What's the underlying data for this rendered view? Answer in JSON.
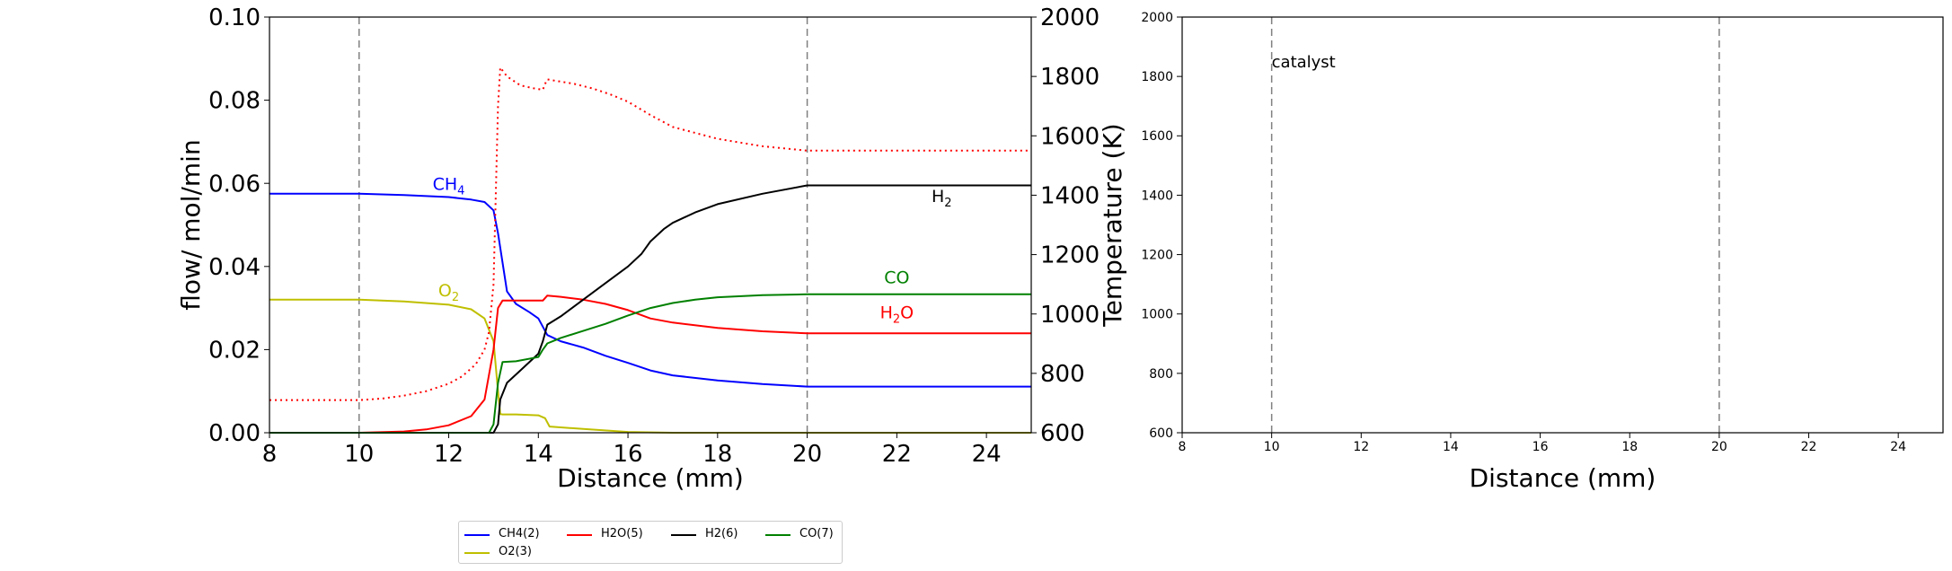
{
  "chart_data": [
    {
      "type": "line",
      "xlabel": "Distance (mm)",
      "ylabel": "flow/ mol/min",
      "ylabel_right": "Temperature (K)",
      "xlim": [
        8,
        25
      ],
      "ylim": [
        0,
        0.1
      ],
      "ylim_right": [
        600,
        2000
      ],
      "x_ticks": [
        "8",
        "10",
        "12",
        "14",
        "16",
        "18",
        "20",
        "22",
        "24"
      ],
      "y_ticks": [
        "0.00",
        "0.02",
        "0.04",
        "0.06",
        "0.08",
        "0.10"
      ],
      "y_right_ticks": [
        "600",
        "800",
        "1000",
        "1200",
        "1400",
        "1600",
        "1800",
        "2000"
      ],
      "vlines": [
        10,
        20
      ],
      "series": [
        {
          "name": "CH4(2)",
          "color": "#0000ff",
          "style": "solid",
          "x": [
            8,
            10,
            11,
            12,
            12.5,
            12.8,
            13.0,
            13.1,
            13.2,
            13.3,
            13.5,
            13.8,
            14.0,
            14.2,
            14.5,
            15,
            15.5,
            16,
            16.5,
            17,
            18,
            19,
            20,
            25
          ],
          "y": [
            0.0575,
            0.0575,
            0.0572,
            0.0567,
            0.0561,
            0.0555,
            0.0535,
            0.048,
            0.041,
            0.034,
            0.031,
            0.029,
            0.0275,
            0.0235,
            0.022,
            0.0205,
            0.0185,
            0.0168,
            0.015,
            0.0138,
            0.0126,
            0.0117,
            0.0111,
            0.0111
          ]
        },
        {
          "name": "O2(3)",
          "color": "#bfbf00",
          "style": "solid",
          "x": [
            8,
            10,
            11,
            12,
            12.5,
            12.8,
            13.0,
            13.1,
            13.15,
            13.2,
            13.5,
            14.0,
            14.15,
            14.25,
            15,
            16,
            17,
            20,
            25
          ],
          "y": [
            0.032,
            0.032,
            0.0316,
            0.0308,
            0.0297,
            0.0275,
            0.022,
            0.01,
            0.0045,
            0.0044,
            0.0044,
            0.0042,
            0.0035,
            0.0015,
            0.0009,
            0.0002,
            0.0,
            0.0,
            0.0
          ]
        },
        {
          "name": "H2O(5)",
          "color": "#ff0000",
          "style": "solid",
          "x": [
            8,
            10,
            11,
            11.5,
            12,
            12.5,
            12.8,
            13.0,
            13.1,
            13.2,
            13.5,
            14.0,
            14.1,
            14.2,
            14.5,
            15,
            15.5,
            16,
            16.5,
            17,
            18,
            19,
            20,
            25
          ],
          "y": [
            0.0,
            0.0,
            0.0003,
            0.0008,
            0.0018,
            0.004,
            0.008,
            0.02,
            0.03,
            0.0318,
            0.0318,
            0.0318,
            0.0318,
            0.033,
            0.0327,
            0.032,
            0.031,
            0.0295,
            0.0275,
            0.0265,
            0.0252,
            0.0244,
            0.0239,
            0.0239
          ]
        },
        {
          "name": "H2(6)",
          "color": "#000000",
          "style": "solid",
          "x": [
            8,
            13.0,
            13.1,
            13.15,
            13.3,
            13.6,
            14.0,
            14.1,
            14.2,
            14.5,
            15,
            15.5,
            16,
            16.3,
            16.5,
            16.8,
            17,
            17.5,
            18,
            19,
            20,
            25
          ],
          "y": [
            0.0,
            0.0,
            0.002,
            0.008,
            0.012,
            0.015,
            0.019,
            0.022,
            0.026,
            0.028,
            0.032,
            0.036,
            0.04,
            0.043,
            0.046,
            0.049,
            0.0505,
            0.053,
            0.055,
            0.0575,
            0.0595,
            0.0595
          ]
        },
        {
          "name": "CO(7)",
          "color": "#008000",
          "style": "solid",
          "x": [
            8,
            12.9,
            13.0,
            13.1,
            13.2,
            13.5,
            14.0,
            14.1,
            14.2,
            14.5,
            15,
            15.5,
            16,
            16.5,
            17,
            17.5,
            18,
            19,
            20,
            25
          ],
          "y": [
            0.0,
            0.0,
            0.002,
            0.012,
            0.017,
            0.0172,
            0.0182,
            0.02,
            0.0215,
            0.0228,
            0.0245,
            0.0262,
            0.0282,
            0.03,
            0.0312,
            0.032,
            0.0326,
            0.0331,
            0.0333,
            0.0333
          ]
        },
        {
          "name": "Temperature",
          "color": "#ff0000",
          "style": "dotted",
          "axis": "right",
          "x": [
            8,
            10,
            10.5,
            11,
            11.5,
            12,
            12.3,
            12.6,
            12.8,
            12.9,
            13.0,
            13.05,
            13.1,
            13.15,
            13.3,
            13.6,
            13.9,
            14.1,
            14.15,
            14.2,
            14.4,
            14.8,
            15.2,
            15.6,
            16,
            16.5,
            17,
            18,
            19,
            20,
            25
          ],
          "y": [
            710,
            710,
            715,
            725,
            740,
            765,
            790,
            830,
            880,
            940,
            1100,
            1400,
            1700,
            1830,
            1800,
            1770,
            1760,
            1755,
            1775,
            1790,
            1785,
            1775,
            1760,
            1740,
            1715,
            1670,
            1630,
            1590,
            1565,
            1550,
            1550
          ]
        }
      ],
      "annotations": [
        {
          "base": "CH",
          "sub": "4",
          "x": 12.0,
          "y": 0.0584,
          "color": "#0000ff"
        },
        {
          "base": "O",
          "sub": "2",
          "x": 12.0,
          "y": 0.0328,
          "color": "#bfbf00"
        },
        {
          "base": "H",
          "sub": "2",
          "x": 23.0,
          "y": 0.0555,
          "color": "#000000"
        },
        {
          "base": "CO",
          "sub": "",
          "x": 22.0,
          "y": 0.036,
          "color": "#008000"
        },
        {
          "base": "H",
          "sub": "2",
          "base2": "O",
          "x": 22.0,
          "y": 0.0275,
          "color": "#ff0000"
        }
      ]
    },
    {
      "type": "line",
      "xlabel": "Distance (mm)",
      "xlim": [
        8,
        25
      ],
      "ylim": [
        600,
        2000
      ],
      "x_ticks": [
        "8",
        "10",
        "12",
        "14",
        "16",
        "18",
        "20",
        "22",
        "24"
      ],
      "y_ticks": [
        "600",
        "800",
        "1000",
        "1200",
        "1400",
        "1600",
        "1800",
        "2000"
      ],
      "vlines": [
        10,
        20
      ],
      "series": [],
      "annotations": [
        {
          "base": "catalyst",
          "x": 10.0,
          "y": 1830,
          "color": "#000000"
        }
      ]
    }
  ],
  "legend": [
    {
      "label": "CH4(2)",
      "color": "#0000ff"
    },
    {
      "label": "H2O(5)",
      "color": "#ff0000"
    },
    {
      "label": "H2(6)",
      "color": "#000000"
    },
    {
      "label": "CO(7)",
      "color": "#008000"
    },
    {
      "label": "O2(3)",
      "color": "#bfbf00"
    }
  ]
}
